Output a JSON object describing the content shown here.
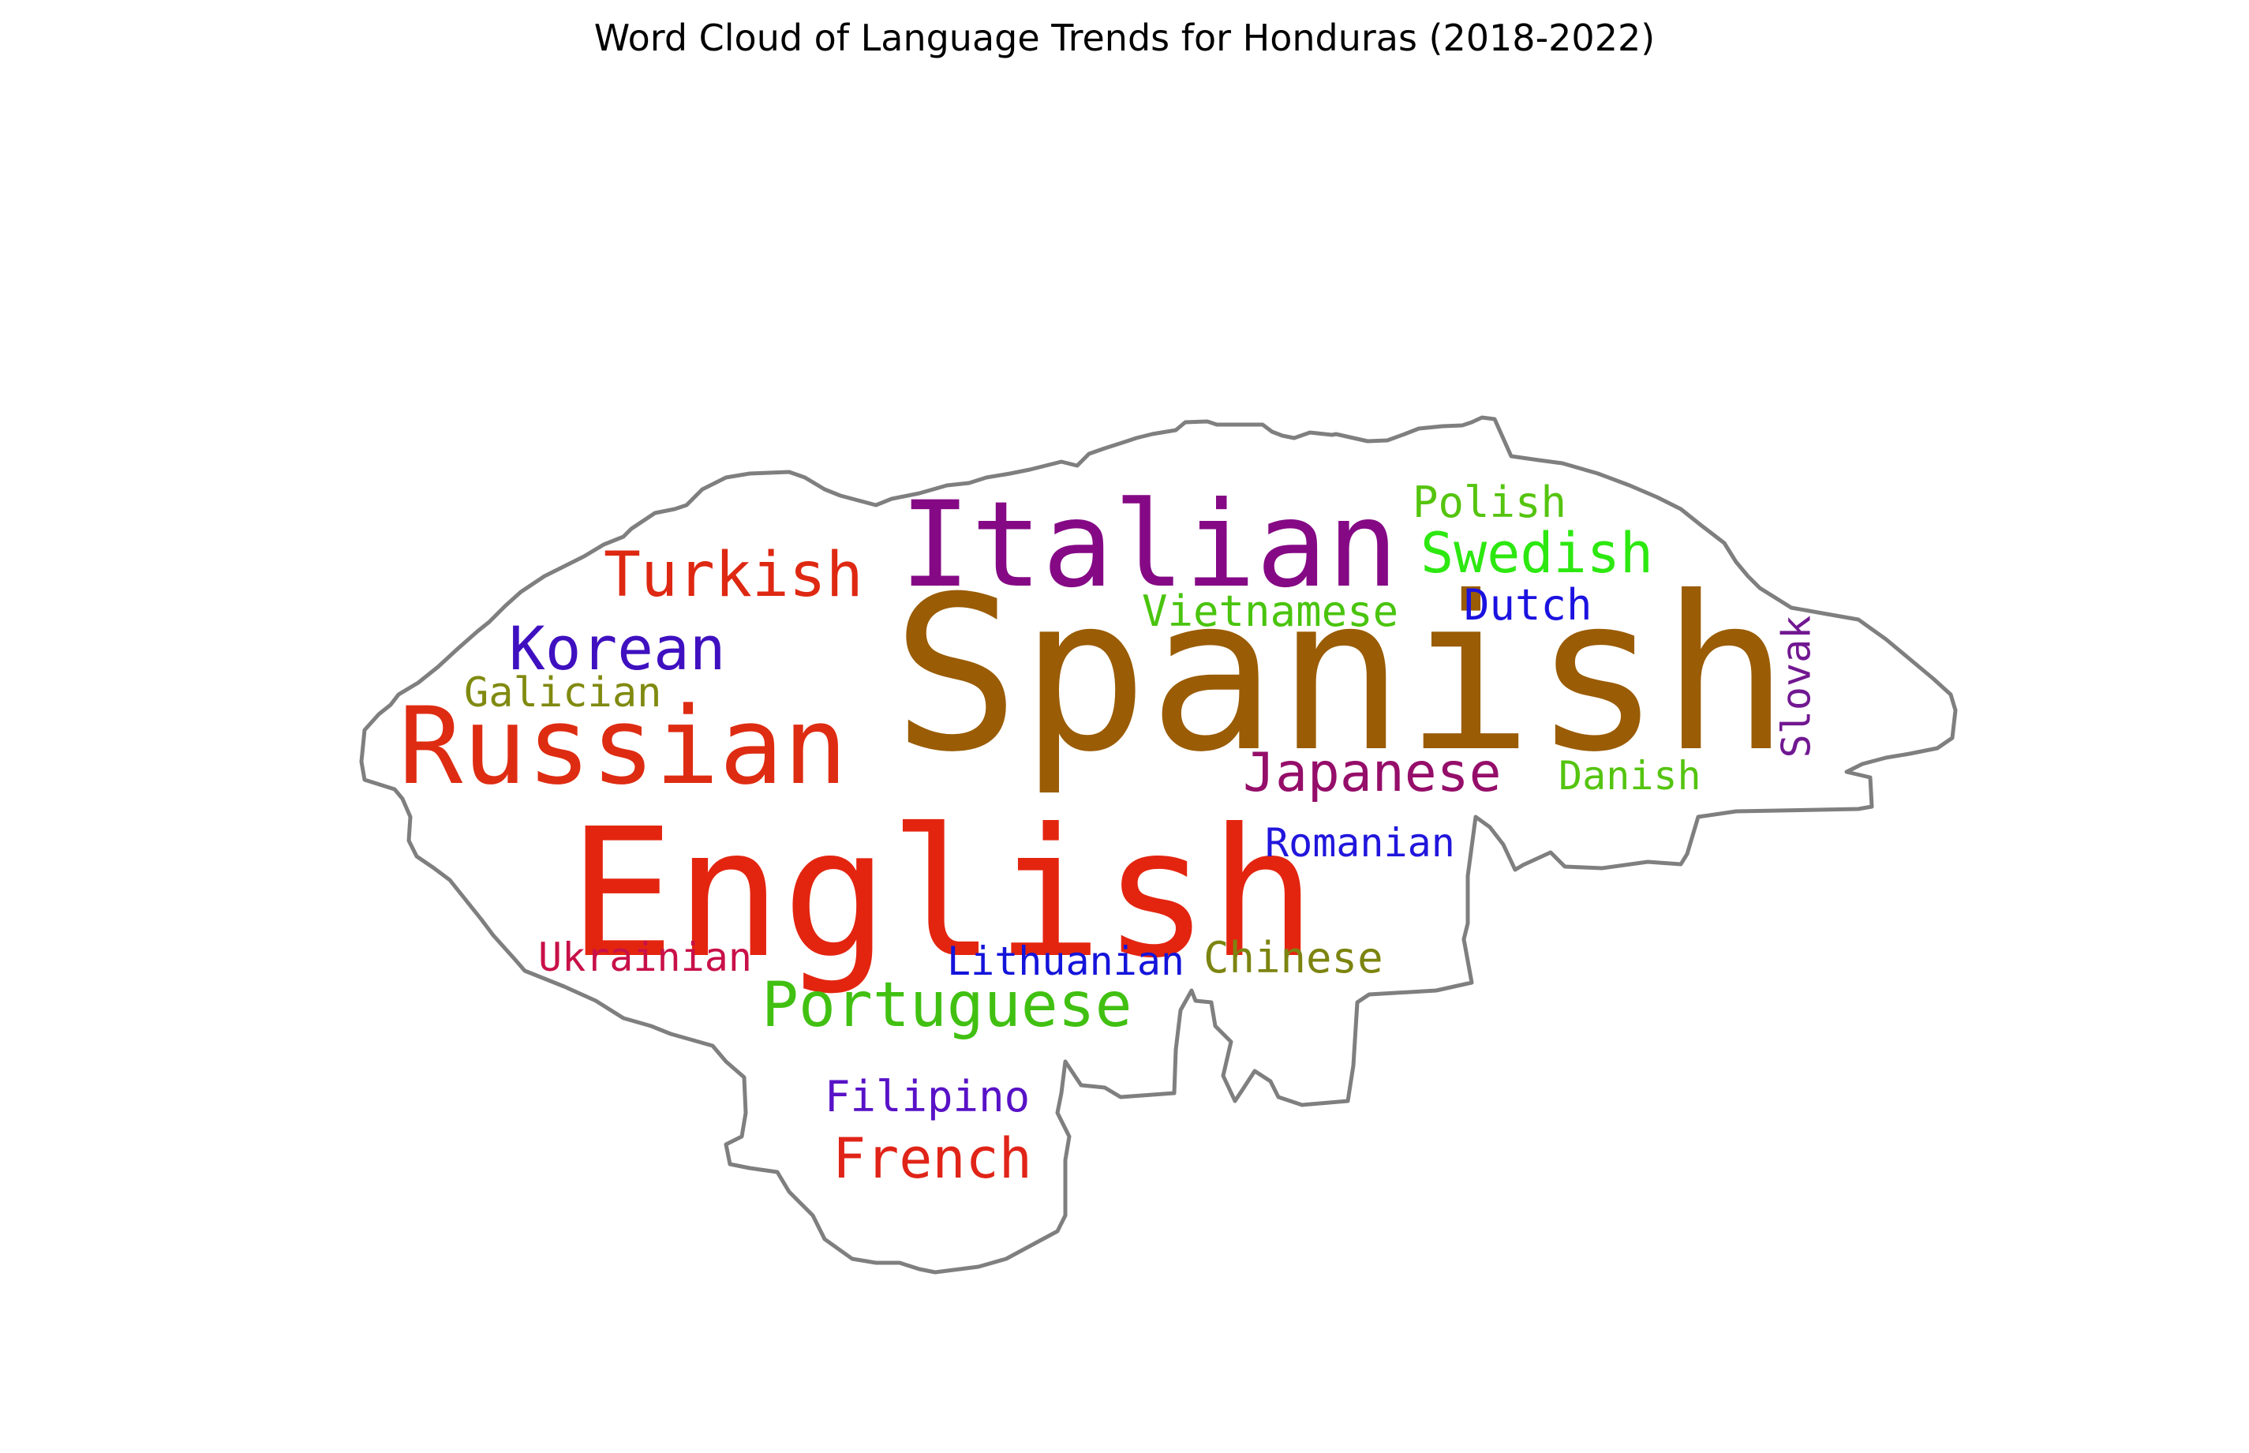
{
  "chart_data": {
    "type": "wordcloud",
    "title": "Word Cloud of Language Trends for Honduras (2018-2022)",
    "mask_shape": "Honduras outline",
    "outline_color": "#7f7f7f",
    "words": [
      {
        "text": "Spanish",
        "color": "#9a5c05"
      },
      {
        "text": "English",
        "color": "#e32510"
      },
      {
        "text": "Italian",
        "color": "#850985"
      },
      {
        "text": "Russian",
        "color": "#de2c12"
      },
      {
        "text": "Portuguese",
        "color": "#41c012"
      },
      {
        "text": "Turkish",
        "color": "#de2812"
      },
      {
        "text": "Korean",
        "color": "#3f10c0"
      },
      {
        "text": "Swedish",
        "color": "#2de810"
      },
      {
        "text": "Japanese",
        "color": "#950e69"
      },
      {
        "text": "French",
        "color": "#e02418"
      },
      {
        "text": "Polish",
        "color": "#55c40f"
      },
      {
        "text": "Dutch",
        "color": "#1b12e0"
      },
      {
        "text": "Vietnamese",
        "color": "#4ac40e"
      },
      {
        "text": "Galician",
        "color": "#808a10"
      },
      {
        "text": "Danish",
        "color": "#55c410"
      },
      {
        "text": "Romanian",
        "color": "#2116dc"
      },
      {
        "text": "Ukrainian",
        "color": "#c81048"
      },
      {
        "text": "Lithuanian",
        "color": "#1414da"
      },
      {
        "text": "Chinese",
        "color": "#7c8410"
      },
      {
        "text": "Filipino",
        "color": "#5812c6"
      },
      {
        "text": "Slovak",
        "color": "#711891"
      }
    ]
  }
}
